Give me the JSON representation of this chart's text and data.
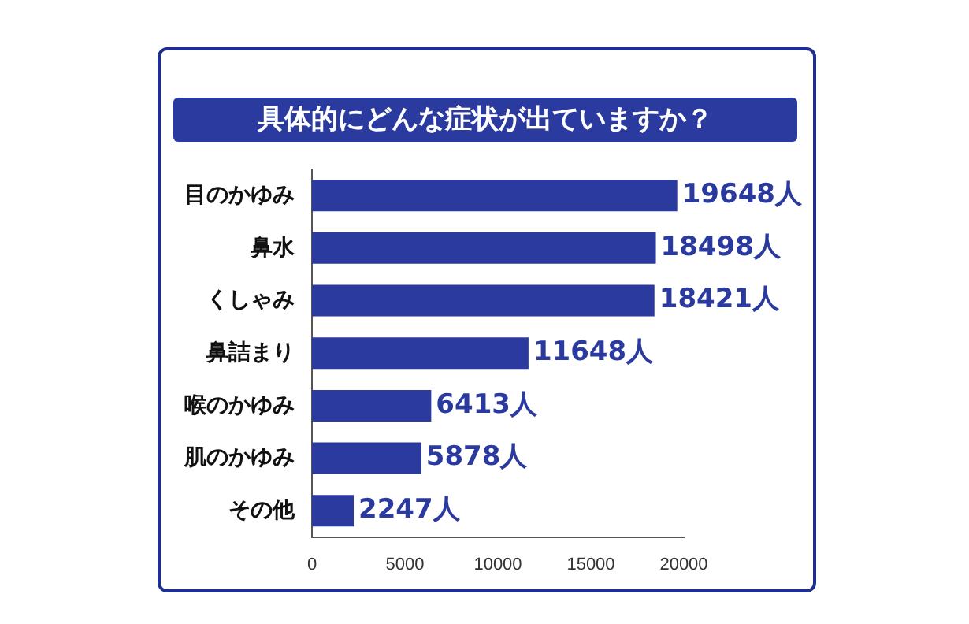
{
  "chart_data": {
    "type": "bar",
    "orientation": "horizontal",
    "title": "具体的にどんな症状が出ていますか？",
    "categories": [
      "目のかゆみ",
      "鼻水",
      "くしゃみ",
      "鼻詰まり",
      "喉のかゆみ",
      "肌のかゆみ",
      "その他"
    ],
    "values": [
      19648,
      18498,
      18421,
      11648,
      6413,
      5878,
      2247
    ],
    "value_labels": [
      "19648人",
      "18498人",
      "18421人",
      "11648人",
      "6413人",
      "5878人",
      "2247人"
    ],
    "color": "#2b3a9f",
    "xlim": [
      0,
      20000
    ],
    "xticks": [
      0,
      5000,
      10000,
      15000,
      20000
    ],
    "grid": false,
    "legend": false
  }
}
